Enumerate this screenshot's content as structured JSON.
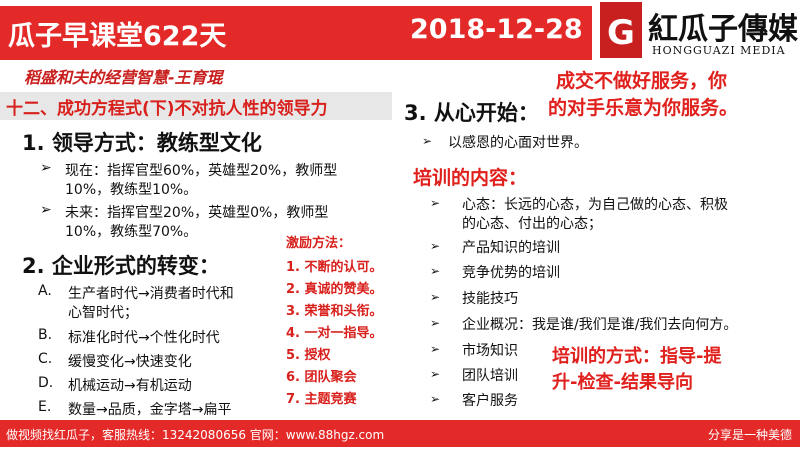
{
  "header": {
    "title": "瓜子早课堂622天",
    "date": "2018-12-28",
    "logo_cn": "紅瓜子傳媒",
    "logo_en": "HONGGUAZI MEDIA",
    "logo_letter": "G"
  },
  "subtitle": "稻盛和夫的经营智慧-王育琨",
  "section": "十二、成功方程式(下)不对抗人性的领导力",
  "left": {
    "h1": "1. 领导方式：教练型文化",
    "bullets": [
      {
        "l1": "现在：指挥官型60%，英雄型20%，教师型",
        "l2": "10%，教练型10%。"
      },
      {
        "l1": "未来：指挥官型20%，英雄型0%，教师型",
        "l2": "10%，教练型70%。"
      }
    ],
    "h2": "2. 企业形式的转变：",
    "list": [
      {
        "m": "A.",
        "l1": "生产者时代→消费者时代和",
        "l2": "心智时代；"
      },
      {
        "m": "B.",
        "l1": "标准化时代→个性化时代"
      },
      {
        "m": "C.",
        "l1": "缓慢变化→快速变化"
      },
      {
        "m": "D.",
        "l1": "机械运动→有机运动"
      },
      {
        "m": "E.",
        "l1": "数量→品质，金字塔→扁平"
      }
    ]
  },
  "incentive": {
    "title": "激励方法：",
    "items": [
      "1.  不断的认可。",
      "2.  真诚的赞美。",
      "3.  荣誉和头衔。",
      "4.  一对一指导。",
      "5.  授权",
      "6.  团队聚会",
      "7.  主题竞赛"
    ]
  },
  "right": {
    "h3": "3. 从心开始：",
    "callout": [
      "成交不做好服务，你",
      "的对手乐意为你服务。"
    ],
    "b0": "以感恩的心面对世界。",
    "training_title": "培训的内容：",
    "training": [
      {
        "l1": "心态：长远的心态，为自己做的心态、积极",
        "l2": "的心态、付出的心态；"
      },
      {
        "l1": "产品知识的培训"
      },
      {
        "l1": "竞争优势的培训"
      },
      {
        "l1": "技能技巧"
      },
      {
        "l1": "企业概况：我是谁/我们是谁/我们去向何方。"
      },
      {
        "l1": "市场知识"
      },
      {
        "l1": "团队培训"
      },
      {
        "l1": "客户服务"
      }
    ],
    "method": [
      "培训的方式：指导-提",
      "升-检查-结果导向"
    ]
  },
  "footer": {
    "left": "做视频找红瓜子，客服热线：13242080656  官网：www.88hgz.com",
    "right": "分享是一种美德"
  },
  "colors": {
    "brand_red": "#e32a28"
  }
}
